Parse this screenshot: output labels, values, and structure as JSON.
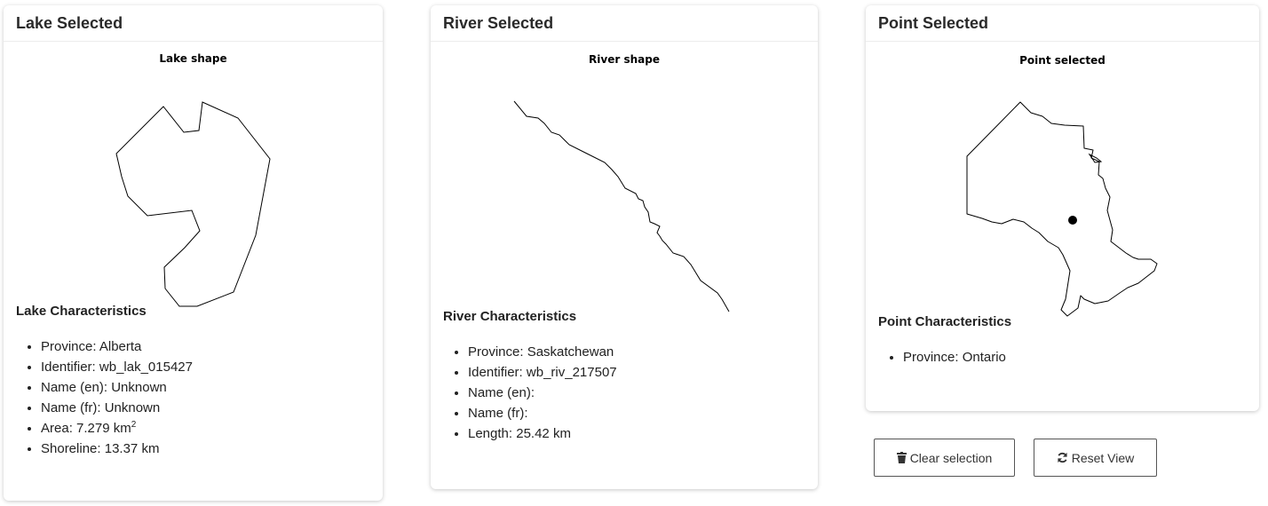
{
  "lake": {
    "header": "Lake Selected",
    "figure_title": "Lake shape",
    "characteristics_title": "Lake Characteristics",
    "items": [
      {
        "label": "Province",
        "value": "Alberta"
      },
      {
        "label": "Identifier",
        "value": "wb_lak_015427"
      },
      {
        "label": "Name (en)",
        "value": "Unknown"
      },
      {
        "label": "Name (fr)",
        "value": "Unknown"
      },
      {
        "label": "Area",
        "value": "7.279 km",
        "sup": "2"
      },
      {
        "label": "Shoreline",
        "value": "13.37 km"
      }
    ]
  },
  "river": {
    "header": "River Selected",
    "figure_title": "River shape",
    "characteristics_title": "River Characteristics",
    "items": [
      {
        "label": "Province",
        "value": "Saskatchewan"
      },
      {
        "label": "Identifier",
        "value": "wb_riv_217507"
      },
      {
        "label": "Name (en)",
        "value": ""
      },
      {
        "label": "Name (fr)",
        "value": ""
      },
      {
        "label": "Length",
        "value": "25.42 km"
      }
    ]
  },
  "point": {
    "header": "Point Selected",
    "figure_title": "Point selected",
    "characteristics_title": "Point Characteristics",
    "items": [
      {
        "label": "Province",
        "value": "Ontario"
      }
    ]
  },
  "actions": {
    "clear_label": "Clear selection",
    "reset_label": "Reset View",
    "clear_icon": "trash-icon",
    "reset_icon": "refresh-icon"
  }
}
